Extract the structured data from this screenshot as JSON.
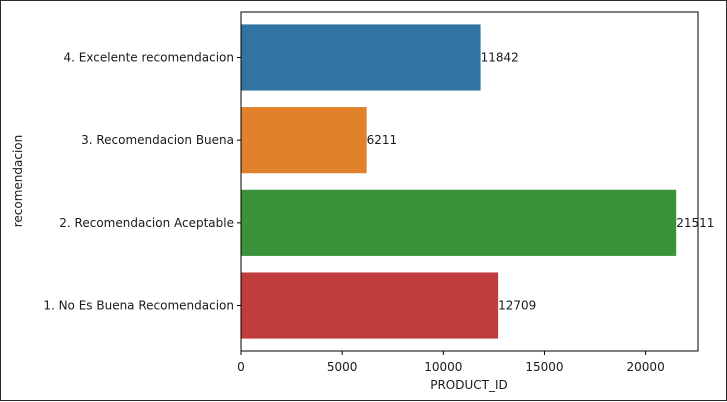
{
  "chart_data": {
    "type": "bar",
    "orientation": "horizontal",
    "categories": [
      "4. Excelente recomendacion",
      "3. Recomendacion Buena",
      "2. Recomendacion Aceptable",
      "1. No Es Buena Recomendacion"
    ],
    "values": [
      11842,
      6211,
      21511,
      12709
    ],
    "value_labels": [
      "11842",
      "6211",
      "21511",
      "12709"
    ],
    "colors": [
      "#3274a1",
      "#e1812c",
      "#3a923a",
      "#c03d3e"
    ],
    "xlabel": "PRODUCT_ID",
    "ylabel": "recomendacion",
    "xlim": [
      0,
      22588
    ],
    "xticks": [
      0,
      5000,
      10000,
      15000,
      20000
    ],
    "xtick_labels": [
      "0",
      "5000",
      "10000",
      "15000",
      "20000"
    ],
    "grid": false
  }
}
